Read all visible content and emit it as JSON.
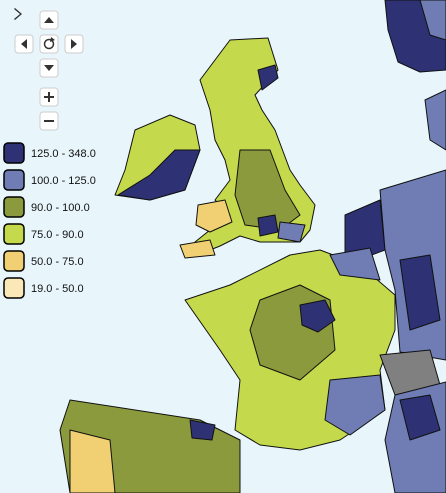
{
  "legend": {
    "items": [
      {
        "label": "125.0 - 348.0",
        "color": "#2e3274"
      },
      {
        "label": "100.0 - 125.0",
        "color": "#6f7db4"
      },
      {
        "label": "90.0 - 100.0",
        "color": "#8b9a3c"
      },
      {
        "label": "75.0 - 90.0",
        "color": "#c4d94c"
      },
      {
        "label": "50.0 - 75.0",
        "color": "#f0d073"
      },
      {
        "label": "19.0 - 50.0",
        "color": "#fbe8b8"
      }
    ]
  }
}
